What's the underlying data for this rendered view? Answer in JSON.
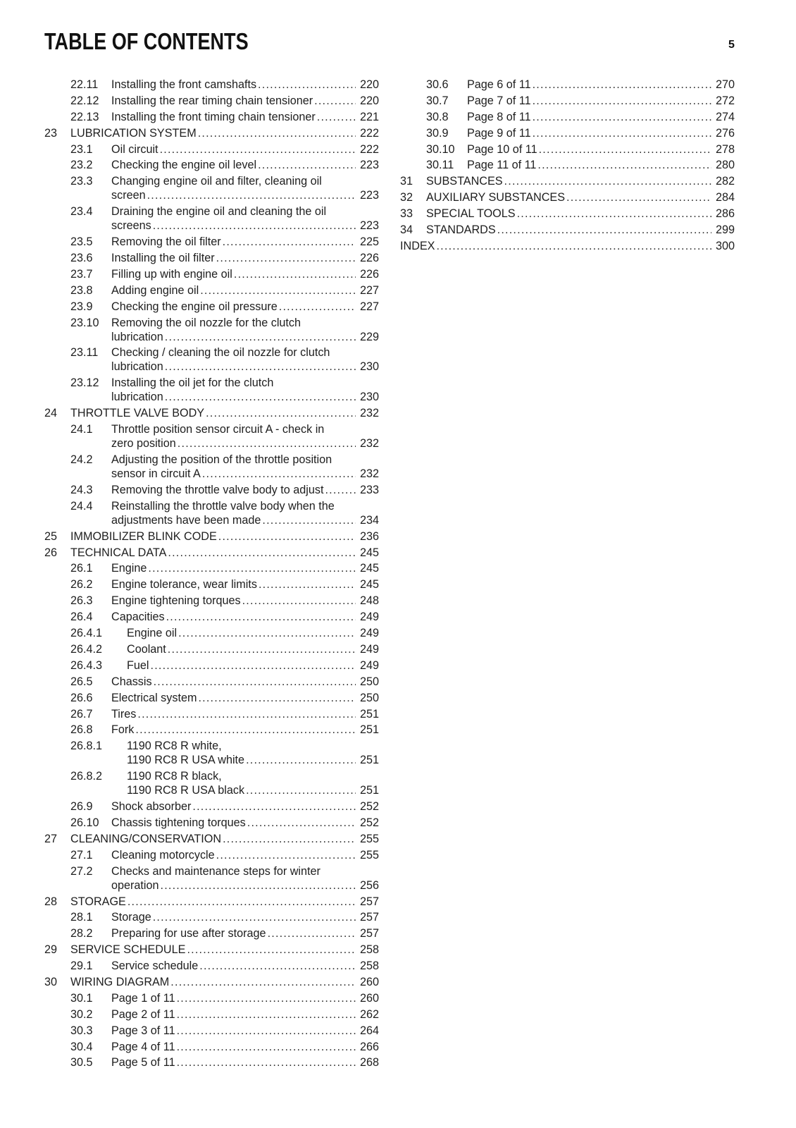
{
  "header": {
    "title": "TABLE OF CONTENTS",
    "page_number": "5"
  },
  "columns": [
    [
      {
        "level": "sub",
        "num": "22.11",
        "lines": [
          "Installing the front camshafts"
        ],
        "page": "220"
      },
      {
        "level": "sub",
        "num": "22.12",
        "lines": [
          "Installing the rear timing chain tensioner"
        ],
        "page": "220"
      },
      {
        "level": "sub",
        "num": "22.13",
        "lines": [
          "Installing the front timing chain tensioner"
        ],
        "page": "221"
      },
      {
        "level": "ch",
        "num": "23",
        "lines": [
          "LUBRICATION SYSTEM"
        ],
        "page": "222"
      },
      {
        "level": "sub",
        "num": "23.1",
        "lines": [
          "Oil circuit"
        ],
        "page": "222"
      },
      {
        "level": "sub",
        "num": "23.2",
        "lines": [
          "Checking the engine oil level"
        ],
        "page": "223"
      },
      {
        "level": "sub",
        "num": "23.3",
        "lines": [
          "Changing engine oil and filter, cleaning oil",
          "screen"
        ],
        "page": "223"
      },
      {
        "level": "sub",
        "num": "23.4",
        "lines": [
          "Draining the engine oil and cleaning the oil",
          "screens"
        ],
        "page": "223"
      },
      {
        "level": "sub",
        "num": "23.5",
        "lines": [
          "Removing the oil filter"
        ],
        "page": "225"
      },
      {
        "level": "sub",
        "num": "23.6",
        "lines": [
          "Installing the oil filter"
        ],
        "page": "226"
      },
      {
        "level": "sub",
        "num": "23.7",
        "lines": [
          "Filling up with engine oil"
        ],
        "page": "226"
      },
      {
        "level": "sub",
        "num": "23.8",
        "lines": [
          "Adding engine oil"
        ],
        "page": "227"
      },
      {
        "level": "sub",
        "num": "23.9",
        "lines": [
          "Checking the engine oil pressure"
        ],
        "page": "227"
      },
      {
        "level": "sub",
        "num": "23.10",
        "lines": [
          "Removing the oil nozzle for the clutch",
          "lubrication"
        ],
        "page": "229"
      },
      {
        "level": "sub",
        "num": "23.11",
        "lines": [
          "Checking / cleaning the oil nozzle for clutch",
          "lubrication"
        ],
        "page": "230"
      },
      {
        "level": "sub",
        "num": "23.12",
        "lines": [
          "Installing the oil jet for the clutch",
          "lubrication"
        ],
        "page": "230"
      },
      {
        "level": "ch",
        "num": "24",
        "lines": [
          "THROTTLE VALVE BODY"
        ],
        "page": "232"
      },
      {
        "level": "sub",
        "num": "24.1",
        "lines": [
          "Throttle position sensor circuit A - check in",
          "zero position"
        ],
        "page": "232"
      },
      {
        "level": "sub",
        "num": "24.2",
        "lines": [
          "Adjusting the position of the throttle position",
          "sensor in circuit A"
        ],
        "page": "232"
      },
      {
        "level": "sub",
        "num": "24.3",
        "lines": [
          "Removing the throttle valve body to adjust"
        ],
        "page": "233"
      },
      {
        "level": "sub",
        "num": "24.4",
        "lines": [
          "Reinstalling the throttle valve body when the",
          "adjustments have been made"
        ],
        "page": "234"
      },
      {
        "level": "ch",
        "num": "25",
        "lines": [
          "IMMOBILIZER BLINK CODE"
        ],
        "page": "236"
      },
      {
        "level": "ch",
        "num": "26",
        "lines": [
          "TECHNICAL DATA"
        ],
        "page": "245"
      },
      {
        "level": "sub",
        "num": "26.1",
        "lines": [
          "Engine"
        ],
        "page": "245"
      },
      {
        "level": "sub",
        "num": "26.2",
        "lines": [
          "Engine tolerance, wear limits"
        ],
        "page": "245"
      },
      {
        "level": "sub",
        "num": "26.3",
        "lines": [
          "Engine tightening torques"
        ],
        "page": "248"
      },
      {
        "level": "sub",
        "num": "26.4",
        "lines": [
          "Capacities"
        ],
        "page": "249"
      },
      {
        "level": "subsub",
        "num": "26.4.1",
        "lines": [
          "Engine oil"
        ],
        "page": "249"
      },
      {
        "level": "subsub",
        "num": "26.4.2",
        "lines": [
          "Coolant"
        ],
        "page": "249"
      },
      {
        "level": "subsub",
        "num": "26.4.3",
        "lines": [
          "Fuel"
        ],
        "page": "249"
      },
      {
        "level": "sub",
        "num": "26.5",
        "lines": [
          "Chassis"
        ],
        "page": "250"
      },
      {
        "level": "sub",
        "num": "26.6",
        "lines": [
          "Electrical system"
        ],
        "page": "250"
      },
      {
        "level": "sub",
        "num": "26.7",
        "lines": [
          "Tires"
        ],
        "page": "251"
      },
      {
        "level": "sub",
        "num": "26.8",
        "lines": [
          "Fork"
        ],
        "page": "251"
      },
      {
        "level": "subsub",
        "num": "26.8.1",
        "lines": [
          "1190 RC8 R white,",
          "1190 RC8 R USA white"
        ],
        "page": "251"
      },
      {
        "level": "subsub",
        "num": "26.8.2",
        "lines": [
          "1190 RC8 R black,",
          "1190 RC8 R USA black"
        ],
        "page": "251"
      },
      {
        "level": "sub",
        "num": "26.9",
        "lines": [
          "Shock absorber"
        ],
        "page": "252"
      },
      {
        "level": "sub",
        "num": "26.10",
        "lines": [
          "Chassis tightening torques"
        ],
        "page": "252"
      },
      {
        "level": "ch",
        "num": "27",
        "lines": [
          "CLEANING/CONSERVATION"
        ],
        "page": "255"
      },
      {
        "level": "sub",
        "num": "27.1",
        "lines": [
          "Cleaning motorcycle"
        ],
        "page": "255"
      },
      {
        "level": "sub",
        "num": "27.2",
        "lines": [
          "Checks and maintenance steps for winter",
          "operation"
        ],
        "page": "256"
      },
      {
        "level": "ch",
        "num": "28",
        "lines": [
          "STORAGE"
        ],
        "page": "257"
      },
      {
        "level": "sub",
        "num": "28.1",
        "lines": [
          "Storage"
        ],
        "page": "257"
      },
      {
        "level": "sub",
        "num": "28.2",
        "lines": [
          "Preparing for use after storage"
        ],
        "page": "257"
      },
      {
        "level": "ch",
        "num": "29",
        "lines": [
          "SERVICE SCHEDULE"
        ],
        "page": "258"
      },
      {
        "level": "sub",
        "num": "29.1",
        "lines": [
          "Service schedule"
        ],
        "page": "258"
      },
      {
        "level": "ch",
        "num": "30",
        "lines": [
          "WIRING DIAGRAM"
        ],
        "page": "260"
      },
      {
        "level": "sub",
        "num": "30.1",
        "lines": [
          "Page 1 of 11"
        ],
        "page": "260"
      },
      {
        "level": "sub",
        "num": "30.2",
        "lines": [
          "Page 2 of 11"
        ],
        "page": "262"
      },
      {
        "level": "sub",
        "num": "30.3",
        "lines": [
          "Page 3 of 11"
        ],
        "page": "264"
      },
      {
        "level": "sub",
        "num": "30.4",
        "lines": [
          "Page 4 of 11"
        ],
        "page": "266"
      },
      {
        "level": "sub",
        "num": "30.5",
        "lines": [
          "Page 5 of 11"
        ],
        "page": "268"
      }
    ],
    [
      {
        "level": "sub",
        "num": "30.6",
        "lines": [
          "Page 6 of 11"
        ],
        "page": "270"
      },
      {
        "level": "sub",
        "num": "30.7",
        "lines": [
          "Page 7 of 11"
        ],
        "page": "272"
      },
      {
        "level": "sub",
        "num": "30.8",
        "lines": [
          "Page 8 of 11"
        ],
        "page": "274"
      },
      {
        "level": "sub",
        "num": "30.9",
        "lines": [
          "Page 9 of 11"
        ],
        "page": "276"
      },
      {
        "level": "sub",
        "num": "30.10",
        "lines": [
          "Page 10 of 11"
        ],
        "page": "278"
      },
      {
        "level": "sub",
        "num": "30.11",
        "lines": [
          "Page 11 of 11"
        ],
        "page": "280"
      },
      {
        "level": "ch",
        "num": "31",
        "lines": [
          "SUBSTANCES"
        ],
        "page": "282"
      },
      {
        "level": "ch",
        "num": "32",
        "lines": [
          "AUXILIARY SUBSTANCES"
        ],
        "page": "284"
      },
      {
        "level": "ch",
        "num": "33",
        "lines": [
          "SPECIAL TOOLS"
        ],
        "page": "286"
      },
      {
        "level": "ch",
        "num": "34",
        "lines": [
          "STANDARDS"
        ],
        "page": "299"
      },
      {
        "level": "index",
        "num": "",
        "lines": [
          "INDEX"
        ],
        "page": "300"
      }
    ]
  ]
}
